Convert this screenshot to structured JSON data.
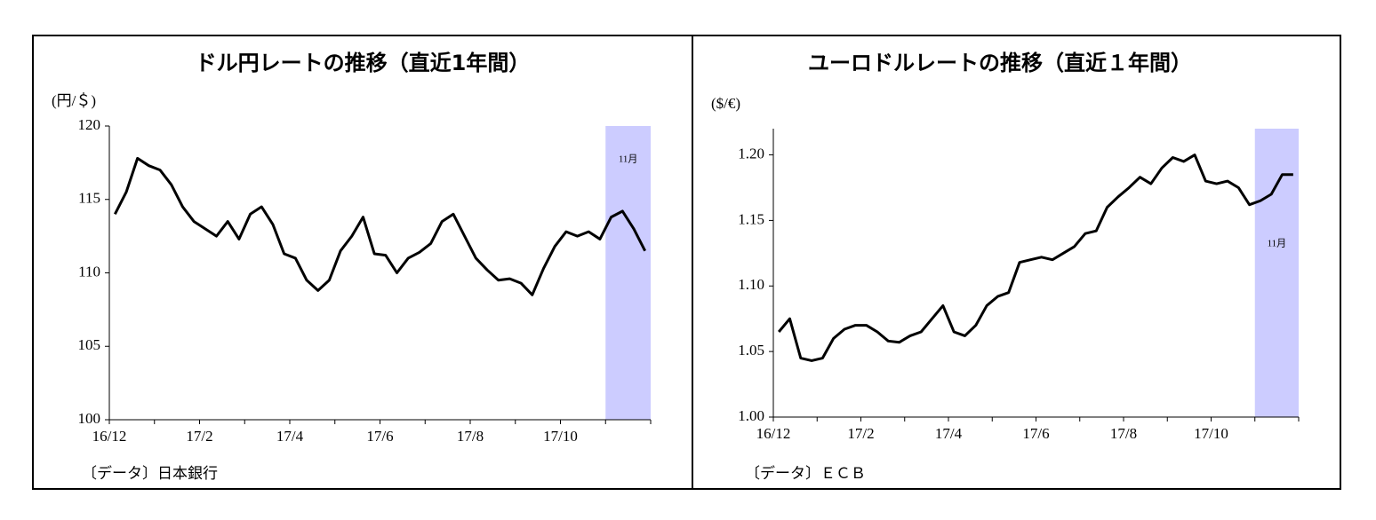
{
  "chart_data": [
    {
      "type": "line",
      "title": "ドル円レートの推移（直近1年間）",
      "y_label": "(円/＄)",
      "source": "〔データ〕日本銀行",
      "categories": [
        "16/12",
        null,
        null,
        null,
        null,
        null,
        null,
        null,
        "17/2",
        null,
        null,
        null,
        null,
        null,
        null,
        null,
        "17/4",
        null,
        null,
        null,
        null,
        null,
        null,
        null,
        "17/6",
        null,
        null,
        null,
        null,
        null,
        null,
        null,
        "17/8",
        null,
        null,
        null,
        null,
        null,
        null,
        null,
        "17/10",
        null,
        null,
        null,
        null,
        null,
        null,
        null
      ],
      "values": [
        114,
        115.5,
        117.8,
        117.3,
        117,
        116,
        114.5,
        113.5,
        113,
        112.5,
        113.5,
        112.3,
        114,
        114.5,
        113.3,
        111.3,
        111,
        109.5,
        108.8,
        109.5,
        111.5,
        112.5,
        113.8,
        111.3,
        111.2,
        110,
        111,
        111.4,
        112,
        113.5,
        114,
        112.5,
        111,
        110.2,
        109.5,
        109.6,
        109.3,
        108.5,
        110.3,
        111.8,
        112.8,
        112.5,
        112.8,
        112.3,
        113.8,
        114.2,
        113,
        111.5
      ],
      "color": "#000000",
      "ylim": [
        100,
        120
      ],
      "yticks": [
        100,
        105,
        110,
        115,
        120
      ],
      "highlight_label": "11月",
      "highlight_color": "#ccccff"
    },
    {
      "type": "line",
      "title": "ユーロドルレートの推移（直近１年間）",
      "y_label": "($/€)",
      "source": "〔データ〕ＥＣＢ",
      "categories": [
        "16/12",
        null,
        null,
        null,
        null,
        null,
        null,
        null,
        "17/2",
        null,
        null,
        null,
        null,
        null,
        null,
        null,
        "17/4",
        null,
        null,
        null,
        null,
        null,
        null,
        null,
        "17/6",
        null,
        null,
        null,
        null,
        null,
        null,
        null,
        "17/8",
        null,
        null,
        null,
        null,
        null,
        null,
        null,
        "17/10",
        null,
        null,
        null,
        null,
        null,
        null,
        null
      ],
      "values": [
        1.065,
        1.075,
        1.045,
        1.043,
        1.045,
        1.06,
        1.067,
        1.07,
        1.07,
        1.065,
        1.058,
        1.057,
        1.062,
        1.065,
        1.075,
        1.085,
        1.065,
        1.062,
        1.07,
        1.085,
        1.092,
        1.095,
        1.118,
        1.12,
        1.122,
        1.12,
        1.125,
        1.13,
        1.14,
        1.142,
        1.16,
        1.168,
        1.175,
        1.183,
        1.178,
        1.19,
        1.198,
        1.195,
        1.2,
        1.18,
        1.178,
        1.18,
        1.175,
        1.162,
        1.165,
        1.17,
        1.185,
        1.185
      ],
      "color": "#000000",
      "ylim": [
        1.0,
        1.22
      ],
      "yticks": [
        {
          "value": 1.0,
          "label": "1.00"
        },
        1.05,
        {
          "value": 1.1,
          "label": "1.10"
        },
        1.15,
        {
          "value": 1.2,
          "label": "1.20"
        }
      ],
      "highlight_label": "11月",
      "highlight_color": "#ccccff"
    }
  ]
}
